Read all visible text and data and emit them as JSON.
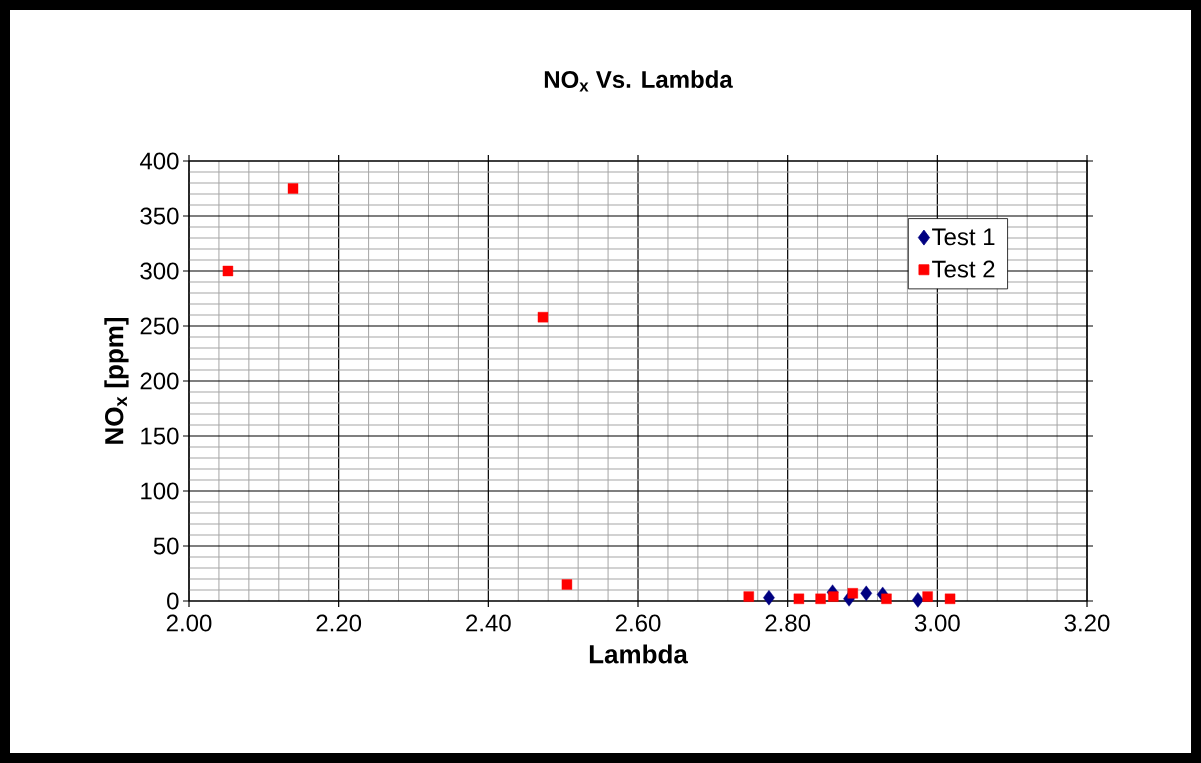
{
  "chart_data": {
    "type": "scatter",
    "title": "NO$_{x}$ Vs. Lambda",
    "xlabel": "Lambda",
    "ylabel": "NO$_{x}$ [ppm]",
    "series": [
      {
        "name": "Test 1",
        "color": "#000080",
        "marker": "diamond",
        "x": [
          2.775,
          2.86,
          2.882,
          2.905,
          2.927,
          2.974
        ],
        "values": [
          3,
          8,
          2,
          7,
          6,
          1
        ]
      },
      {
        "name": "Test 2",
        "color": "#ff0000",
        "marker": "square",
        "x": [
          2.052,
          2.139,
          2.473,
          2.505,
          2.748,
          2.815,
          2.844,
          2.861,
          2.887,
          2.932,
          2.987,
          3.017
        ],
        "values": [
          300,
          375,
          258,
          15,
          4,
          2,
          2,
          4,
          7,
          2,
          4,
          2
        ]
      }
    ],
    "xlim": [
      2.0,
      3.2
    ],
    "ylim": [
      0,
      400
    ],
    "xticks": [
      {
        "value": 2.0,
        "label": "2.00"
      },
      {
        "value": 2.2,
        "label": "2.20"
      },
      {
        "value": 2.4,
        "label": "2.40"
      },
      {
        "value": 2.6,
        "label": "2.60"
      },
      {
        "value": 2.8,
        "label": "2.80"
      },
      {
        "value": 3.0,
        "label": "3.00"
      },
      {
        "value": 3.2,
        "label": "3.20"
      }
    ],
    "yticks": [
      0,
      50,
      100,
      150,
      200,
      250,
      300,
      350,
      400
    ],
    "grid": true,
    "legend": "top right"
  }
}
